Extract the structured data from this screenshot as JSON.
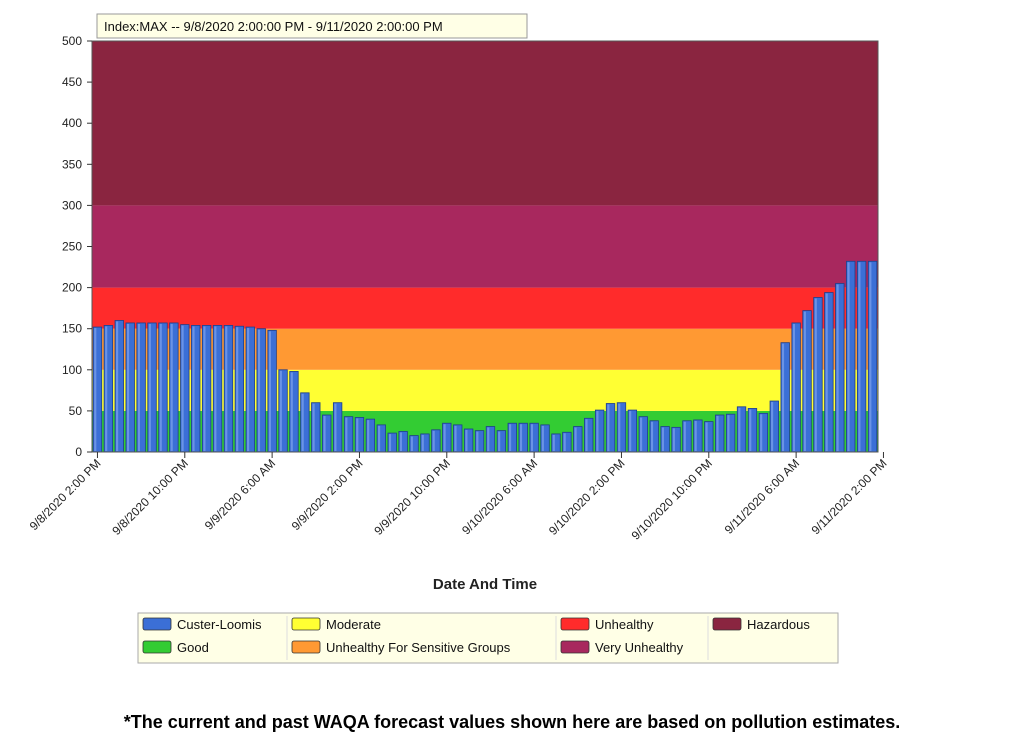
{
  "chart_data": {
    "type": "bar",
    "range_label": "Index:MAX -- 9/8/2020 2:00:00 PM  -  9/11/2020 2:00:00 PM",
    "xlabel": "Date And Time",
    "ylabel": "",
    "ylim": [
      0,
      500
    ],
    "yticks": [
      0,
      50,
      100,
      150,
      200,
      250,
      300,
      350,
      400,
      450,
      500
    ],
    "x_tick_labels": [
      "9/8/2020 2:00 PM",
      "9/8/2020 10:00 PM",
      "9/9/2020 6:00 AM",
      "9/9/2020 2:00 PM",
      "9/9/2020 10:00 PM",
      "9/10/2020 6:00 AM",
      "9/10/2020 2:00 PM",
      "9/10/2020 10:00 PM",
      "9/11/2020 6:00 AM",
      "9/11/2020 2:00 PM"
    ],
    "x_tick_hours": [
      0,
      8,
      16,
      24,
      32,
      40,
      48,
      56,
      64,
      72
    ],
    "series": [
      {
        "name": "Custer-Loomis",
        "color": "#3b6fd6",
        "values": [
          152,
          154,
          160,
          157,
          157,
          157,
          157,
          157,
          155,
          154,
          154,
          154,
          154,
          153,
          152,
          150,
          148,
          100,
          98,
          72,
          60,
          45,
          60,
          43,
          42,
          40,
          33,
          23,
          25,
          20,
          22,
          27,
          35,
          33,
          28,
          26,
          31,
          26,
          35,
          35,
          35,
          33,
          22,
          24,
          31,
          41,
          51,
          59,
          60,
          51,
          43,
          38,
          31,
          30,
          38,
          39,
          37,
          45,
          46,
          55,
          53,
          47,
          62,
          133,
          157,
          172,
          188,
          194,
          205,
          232,
          232,
          232
        ]
      }
    ],
    "categories_bands": [
      {
        "name": "Good",
        "from": 0,
        "to": 50,
        "color": "#33cc33"
      },
      {
        "name": "Moderate",
        "from": 50,
        "to": 100,
        "color": "#ffff33"
      },
      {
        "name": "Unhealthy For Sensitive Groups",
        "from": 100,
        "to": 150,
        "color": "#ff9933"
      },
      {
        "name": "Unhealthy",
        "from": 150,
        "to": 200,
        "color": "#ff2b2b"
      },
      {
        "name": "Very Unhealthy",
        "from": 200,
        "to": 300,
        "color": "#a8285e"
      },
      {
        "name": "Hazardous",
        "from": 300,
        "to": 500,
        "color": "#8a2540"
      }
    ],
    "legend": [
      {
        "label": "Custer-Loomis",
        "color": "#3b6fd6"
      },
      {
        "label": "Good",
        "color": "#33cc33"
      },
      {
        "label": "Moderate",
        "color": "#ffff33"
      },
      {
        "label": "Unhealthy For Sensitive Groups",
        "color": "#ff9933"
      },
      {
        "label": "Unhealthy",
        "color": "#ff2b2b"
      },
      {
        "label": "Very Unhealthy",
        "color": "#a8285e"
      },
      {
        "label": "Hazardous",
        "color": "#8a2540"
      }
    ],
    "grid": false,
    "legend_placement": "bottom"
  },
  "footnote": "*The current and past WAQA forecast values shown here are based on pollution estimates."
}
